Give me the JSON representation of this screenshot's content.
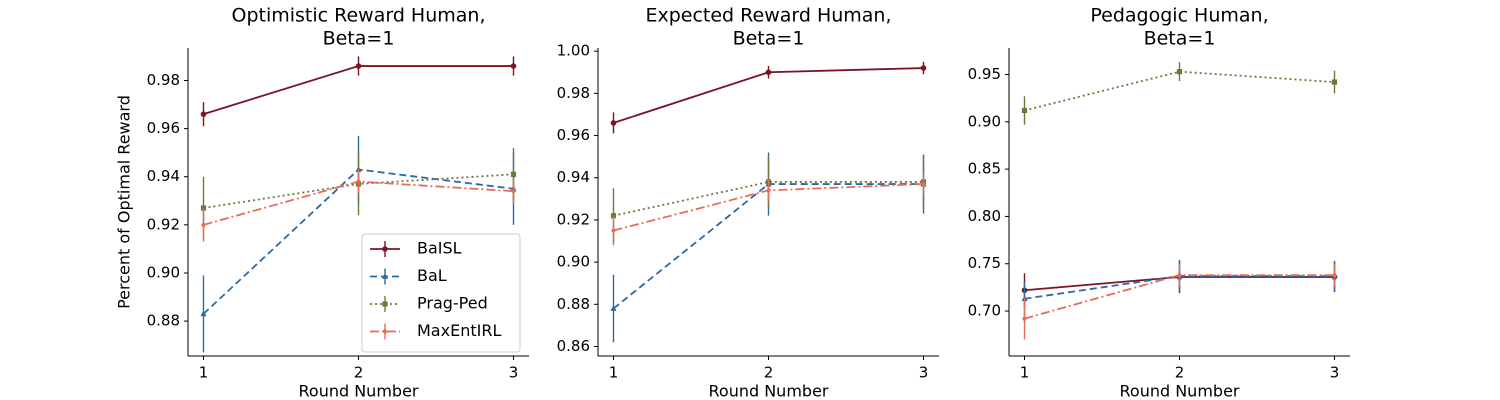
{
  "colors": {
    "BaISL": "#7b1423",
    "BaL": "#2e6aa1",
    "Prag-Ped": "#6b7a3c",
    "MaxEntIRL": "#e46d57"
  },
  "chart_data": [
    {
      "type": "line",
      "title": [
        "Optimistic Reward Human,",
        "Beta=1"
      ],
      "xlabel": "Round Number",
      "ylabel": "Percent of Optimal Reward",
      "x": [
        1,
        2,
        3
      ],
      "xlim": [
        0.9,
        3.1
      ],
      "ylim": [
        0.8655,
        0.9935
      ],
      "yticks": [
        0.88,
        0.9,
        0.92,
        0.94,
        0.96,
        0.98
      ],
      "ytick_labels": [
        "0.88",
        "0.90",
        "0.92",
        "0.94",
        "0.96",
        "0.98"
      ],
      "legend_position": "lower right",
      "series": [
        {
          "name": "BaISL",
          "values": [
            0.966,
            0.986,
            0.986
          ],
          "errors": [
            0.005,
            0.004,
            0.004
          ],
          "linestyle": "solid",
          "marker": "circle"
        },
        {
          "name": "BaL",
          "values": [
            0.883,
            0.943,
            0.935
          ],
          "errors": [
            0.016,
            0.014,
            0.015
          ],
          "linestyle": "dashed",
          "marker": "triangle"
        },
        {
          "name": "Prag-Ped",
          "values": [
            0.927,
            0.937,
            0.941
          ],
          "errors": [
            0.013,
            0.013,
            0.011
          ],
          "linestyle": "dotted",
          "marker": "square"
        },
        {
          "name": "MaxEntIRL",
          "values": [
            0.92,
            0.938,
            0.934
          ],
          "errors": [
            0.007,
            0.005,
            0.005
          ],
          "linestyle": "dashdot",
          "marker": "diamond"
        }
      ]
    },
    {
      "type": "line",
      "title": [
        "Expected Reward Human,",
        "Beta=1"
      ],
      "xlabel": "Round Number",
      "ylabel": "",
      "x": [
        1,
        2,
        3
      ],
      "xlim": [
        0.9,
        3.1
      ],
      "ylim": [
        0.8555,
        1.0015
      ],
      "yticks": [
        0.86,
        0.88,
        0.9,
        0.92,
        0.94,
        0.96,
        0.98,
        1.0
      ],
      "ytick_labels": [
        "0.86",
        "0.88",
        "0.90",
        "0.92",
        "0.94",
        "0.96",
        "0.98",
        "1.00"
      ],
      "series": [
        {
          "name": "BaISL",
          "values": [
            0.966,
            0.99,
            0.992
          ],
          "errors": [
            0.005,
            0.003,
            0.003
          ],
          "linestyle": "solid",
          "marker": "circle"
        },
        {
          "name": "BaL",
          "values": [
            0.878,
            0.937,
            0.937
          ],
          "errors": [
            0.016,
            0.015,
            0.014
          ],
          "linestyle": "dashed",
          "marker": "triangle"
        },
        {
          "name": "Prag-Ped",
          "values": [
            0.922,
            0.938,
            0.938
          ],
          "errors": [
            0.013,
            0.012,
            0.013
          ],
          "linestyle": "dotted",
          "marker": "square"
        },
        {
          "name": "MaxEntIRL",
          "values": [
            0.915,
            0.934,
            0.937
          ],
          "errors": [
            0.007,
            0.005,
            0.005
          ],
          "linestyle": "dashdot",
          "marker": "diamond"
        }
      ]
    },
    {
      "type": "line",
      "title": [
        "Pedagogic Human,",
        "Beta=1"
      ],
      "xlabel": "Round Number",
      "ylabel": "",
      "x": [
        1,
        2,
        3
      ],
      "xlim": [
        0.9,
        3.1
      ],
      "ylim": [
        0.6525,
        0.978
      ],
      "yticks": [
        0.7,
        0.75,
        0.8,
        0.85,
        0.9,
        0.95
      ],
      "ytick_labels": [
        "0.70",
        "0.75",
        "0.80",
        "0.85",
        "0.90",
        "0.95"
      ],
      "series": [
        {
          "name": "BaISL",
          "values": [
            0.722,
            0.736,
            0.736
          ],
          "errors": [
            0.018,
            0.017,
            0.016
          ],
          "linestyle": "solid",
          "marker": "circle"
        },
        {
          "name": "BaL",
          "values": [
            0.713,
            0.737,
            0.737
          ],
          "errors": [
            0.018,
            0.017,
            0.016
          ],
          "linestyle": "dashed",
          "marker": "triangle"
        },
        {
          "name": "Prag-Ped",
          "values": [
            0.912,
            0.953,
            0.942
          ],
          "errors": [
            0.015,
            0.01,
            0.012
          ],
          "linestyle": "dotted",
          "marker": "square"
        },
        {
          "name": "MaxEntIRL",
          "values": [
            0.692,
            0.738,
            0.738
          ],
          "errors": [
            0.022,
            0.012,
            0.012
          ],
          "linestyle": "dashdot",
          "marker": "diamond"
        }
      ]
    }
  ]
}
